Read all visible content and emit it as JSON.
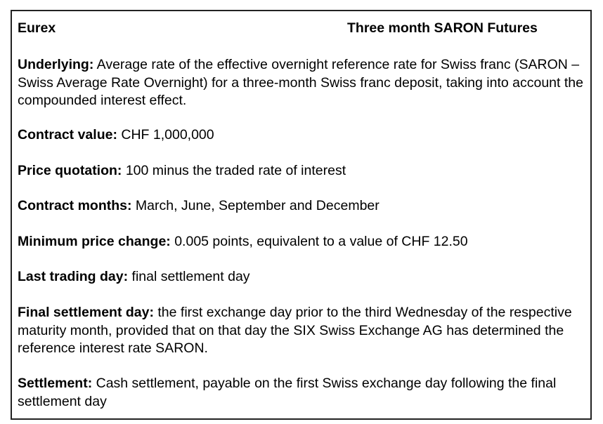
{
  "header": {
    "exchange": "Eurex",
    "product": "Three month SARON Futures"
  },
  "sections": {
    "underlying": {
      "label": "Underlying:",
      "text": " Average rate of the effective overnight reference rate for Swiss franc (SARON – Swiss Average Rate Overnight) for a three-month Swiss franc deposit, taking into account the compounded interest effect."
    },
    "contract_value": {
      "label": "Contract value:",
      "text": " CHF 1,000,000"
    },
    "price_quotation": {
      "label": "Price quotation:",
      "text": " 100 minus the traded rate of interest"
    },
    "contract_months": {
      "label": "Contract months:",
      "text": " March, June, September and December"
    },
    "minimum_price_change": {
      "label": "Minimum price change:",
      "text": " 0.005 points, equivalent to a value of CHF 12.50"
    },
    "last_trading_day": {
      "label": "Last trading day:",
      "text": " final settlement day"
    },
    "final_settlement_day": {
      "label": "Final settlement day:",
      "text": " the first exchange day prior to the third Wednesday of the respective maturity month, provided that on that day the SIX Swiss Exchange AG has determined the reference interest rate SARON."
    },
    "settlement": {
      "label": "Settlement:",
      "text": " Cash settlement, payable on the first Swiss exchange day following the final settlement day"
    }
  }
}
